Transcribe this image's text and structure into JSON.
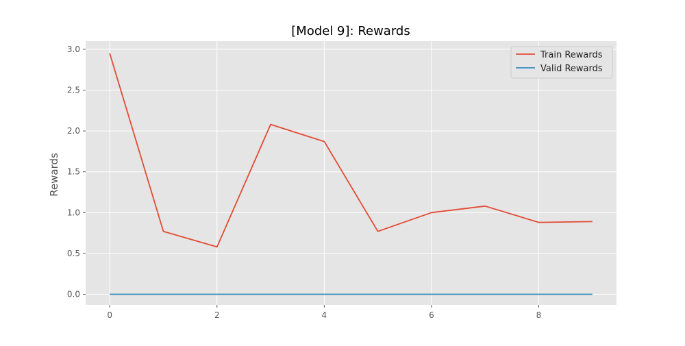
{
  "chart_data": {
    "type": "line",
    "title": "[Model 9]: Rewards",
    "xlabel": "",
    "ylabel": "Rewards",
    "x": [
      0,
      1,
      2,
      3,
      4,
      5,
      6,
      7,
      8,
      9
    ],
    "xlim": [
      -0.45,
      9.45
    ],
    "ylim": [
      -0.13,
      3.1
    ],
    "xticks": [
      0,
      2,
      4,
      6,
      8
    ],
    "xtick_labels": [
      "0",
      "2",
      "4",
      "6",
      "8"
    ],
    "yticks": [
      0.0,
      0.5,
      1.0,
      1.5,
      2.0,
      2.5,
      3.0
    ],
    "ytick_labels": [
      "0.0",
      "0.5",
      "1.0",
      "1.5",
      "2.0",
      "2.5",
      "3.0"
    ],
    "grid": true,
    "legend_position": "top-right",
    "series": [
      {
        "name": "Train Rewards",
        "color": "#E24A33",
        "values": [
          2.95,
          0.77,
          0.58,
          2.08,
          1.87,
          0.77,
          1.0,
          1.08,
          0.88,
          0.89
        ]
      },
      {
        "name": "Valid Rewards",
        "color": "#348ABD",
        "values": [
          0,
          0,
          0,
          0,
          0,
          0,
          0,
          0,
          0,
          0
        ]
      }
    ]
  }
}
